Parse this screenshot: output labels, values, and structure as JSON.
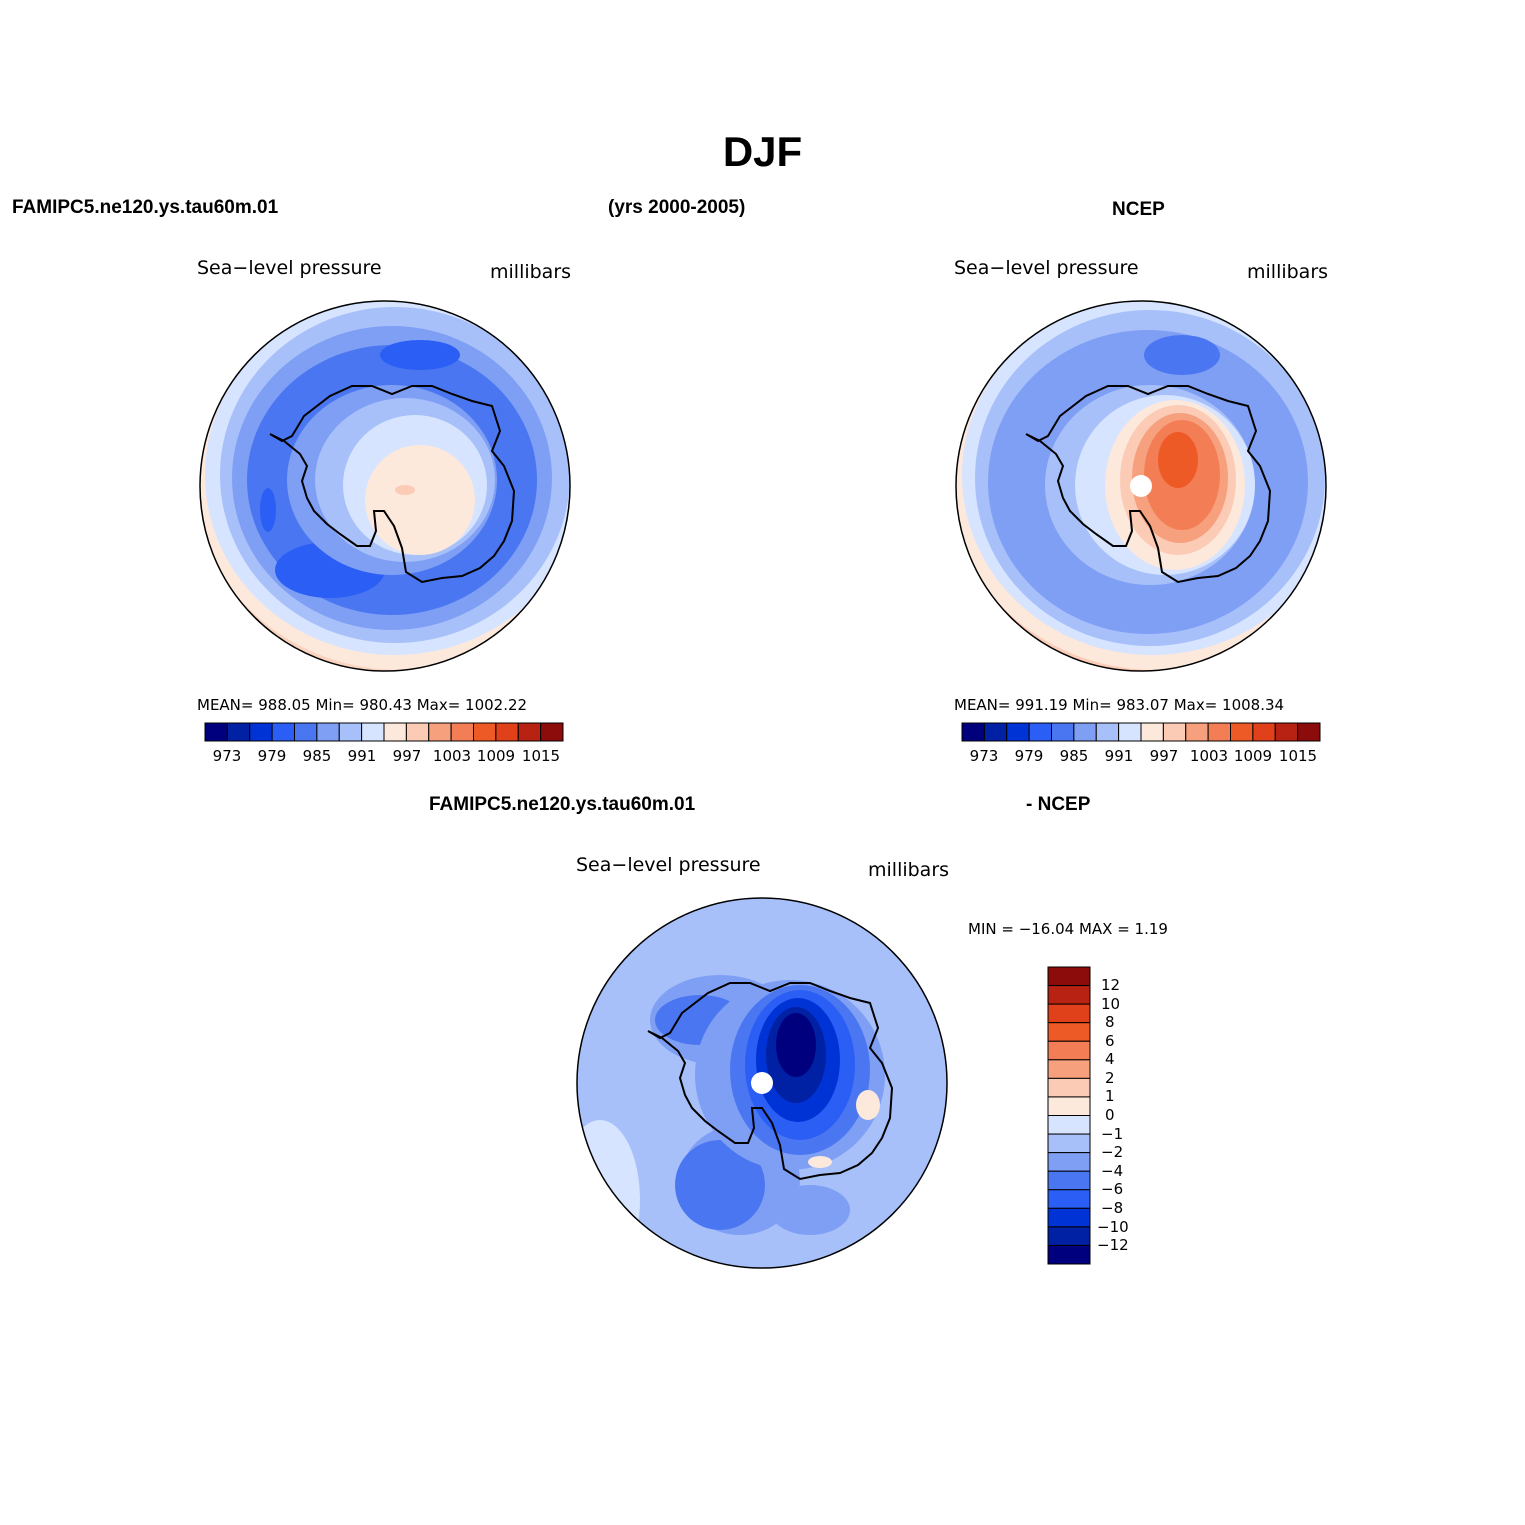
{
  "title": "DJF",
  "header": {
    "left": "FAMIPC5.ne120.ys.tau60m.01",
    "center": "(yrs 2000-2005)",
    "right": "NCEP"
  },
  "panels": {
    "model": {
      "variable": "Sea−level pressure",
      "units": "millibars",
      "stats_label": "MEAN=  988.05   Min=  980.43   Max=  1002.22"
    },
    "obs": {
      "variable": "Sea−level pressure",
      "units": "millibars",
      "stats_label": "MEAN=  991.19   Min=  983.07   Max=  1008.34"
    },
    "diff": {
      "title_left": "FAMIPC5.ne120.ys.tau60m.01",
      "title_right": "- NCEP",
      "variable": "Sea−level pressure",
      "units": "millibars",
      "stats_label": "MIN =  −16.04  MAX =     1.19"
    }
  },
  "colors": {
    "levels16": [
      "#00007f",
      "#0021a3",
      "#0033d6",
      "#2b5ef5",
      "#4a77f1",
      "#7f9ff5",
      "#a8c0fa",
      "#d6e4ff",
      "#fde8dc",
      "#fbcbb6",
      "#f6a07e",
      "#f37e55",
      "#ee5a26",
      "#e0401a",
      "#b82212",
      "#8c0b0b"
    ],
    "diff_levels": [
      "#8c0b0b",
      "#b82212",
      "#e0401a",
      "#ee5a26",
      "#f37e55",
      "#f6a07e",
      "#fbcbb6",
      "#fde8dc",
      "#d6e4ff",
      "#a8c0fa",
      "#7f9ff5",
      "#4a77f1",
      "#2b5ef5",
      "#0033d6",
      "#0021a3",
      "#00007f"
    ]
  },
  "colorbar": {
    "abs_ticks": [
      "973",
      "979",
      "985",
      "991",
      "997",
      "1003",
      "1009",
      "1015"
    ],
    "diff_ticks": [
      "12",
      "10",
      "8",
      "6",
      "4",
      "2",
      "1",
      "0",
      "−1",
      "−2",
      "−4",
      "−6",
      "−8",
      "−10",
      "−12"
    ]
  }
}
